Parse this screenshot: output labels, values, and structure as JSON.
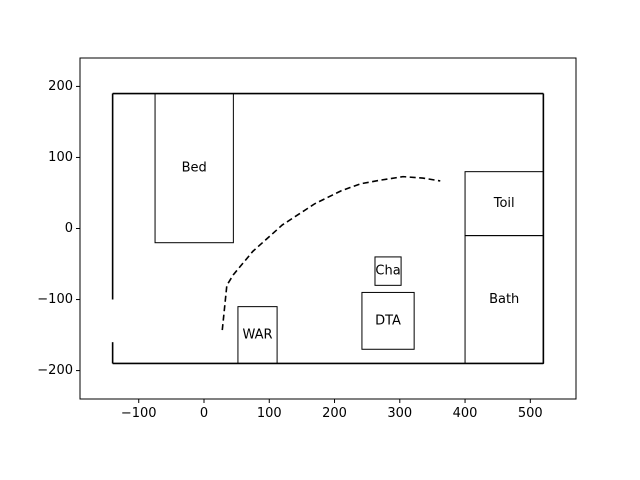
{
  "chart_data": {
    "type": "scatter",
    "title": "",
    "xlabel": "",
    "ylabel": "",
    "xlim": [
      -190,
      570
    ],
    "ylim": [
      -240,
      240
    ],
    "grid": false,
    "xticks": [
      -100,
      0,
      100,
      200,
      300,
      400,
      500
    ],
    "yticks": [
      -200,
      -100,
      0,
      100,
      200
    ],
    "xtick_labels": [
      "−100",
      "0",
      "100",
      "200",
      "300",
      "400",
      "500"
    ],
    "ytick_labels": [
      "−200",
      "−100",
      "0",
      "100",
      "200"
    ],
    "walls": [
      {
        "name": "top-wall",
        "x1": -140,
        "y1": 190,
        "x2": 520,
        "y2": 190
      },
      {
        "name": "bottom-wall",
        "x1": -140,
        "y1": -190,
        "x2": 520,
        "y2": -190
      },
      {
        "name": "right-wall",
        "x1": 520,
        "y1": 190,
        "x2": 520,
        "y2": -190
      },
      {
        "name": "left-wall-upper",
        "x1": -140,
        "y1": 190,
        "x2": -140,
        "y2": -100
      },
      {
        "name": "left-wall-lower",
        "x1": -140,
        "y1": -160,
        "x2": -140,
        "y2": -190
      }
    ],
    "rooms": [
      {
        "label": "Bed",
        "x0": -75,
        "y0": -20,
        "x1": 45,
        "y1": 190
      },
      {
        "label": "WAR",
        "x0": 52,
        "y0": -190,
        "x1": 112,
        "y1": -110
      },
      {
        "label": "DTA",
        "x0": 242,
        "y0": -170,
        "x1": 322,
        "y1": -90
      },
      {
        "label": "Cha",
        "x0": 262,
        "y0": -80,
        "x1": 302,
        "y1": -40
      },
      {
        "label": "Toil",
        "x0": 400,
        "y0": -10,
        "x1": 520,
        "y1": 80
      },
      {
        "label": "Bath",
        "x0": 400,
        "y0": -190,
        "x1": 520,
        "y1": -10
      }
    ],
    "path": {
      "style": "dashed",
      "x": [
        28,
        35,
        45,
        75,
        120,
        170,
        210,
        240,
        270,
        305,
        335,
        362
      ],
      "y": [
        -143,
        -80,
        -65,
        -32,
        5,
        35,
        53,
        63,
        68,
        73,
        71,
        67
      ]
    }
  }
}
